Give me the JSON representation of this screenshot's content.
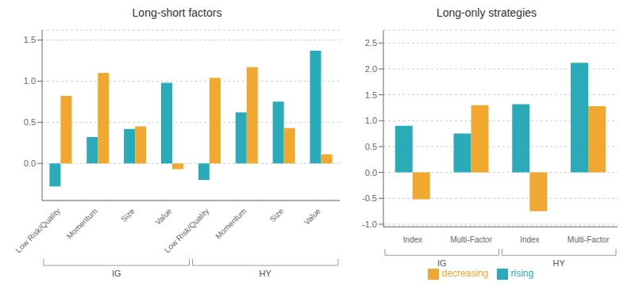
{
  "chart_data": [
    {
      "type": "bar",
      "title": "Long-short factors",
      "categories": [
        "Low Risk/Quality",
        "Momentum",
        "Size",
        "Value",
        "Low Risk/Quality",
        "Momentum",
        "Size",
        "Value"
      ],
      "series": [
        {
          "name": "rising",
          "color": "#2aabba",
          "values": [
            -0.28,
            0.32,
            0.42,
            0.98,
            -0.2,
            0.62,
            0.75,
            1.37
          ]
        },
        {
          "name": "decreasing",
          "color": "#f0a830",
          "values": [
            0.82,
            1.1,
            0.45,
            -0.07,
            1.04,
            1.17,
            0.43,
            0.11
          ]
        }
      ],
      "ylim": [
        -0.45,
        1.62
      ],
      "yticks": [
        {
          "value": 0,
          "label": "0.0"
        },
        0.5,
        {
          "value": 1,
          "label": "1.0"
        },
        1.5
      ],
      "grid": true,
      "annotations": [
        "IG",
        "HY"
      ]
    },
    {
      "type": "bar",
      "title": "Long-only strategies",
      "categories": [
        "Index",
        "Multi-Factor",
        "Index",
        "Multi-Factor"
      ],
      "series": [
        {
          "name": "rising",
          "color": "#2aabba",
          "values": [
            0.9,
            0.75,
            1.32,
            2.12
          ]
        },
        {
          "name": "decreasing",
          "color": "#f0a830",
          "values": [
            -0.52,
            1.3,
            -0.75,
            1.28
          ]
        }
      ],
      "ylim": [
        -1.05,
        2.75
      ],
      "yticks": [
        {
          "value": -1,
          "label": "-1.0"
        },
        -0.5,
        {
          "value": 0,
          "label": "0.0"
        },
        0.5,
        {
          "value": 1,
          "label": "1.0"
        },
        1.5,
        {
          "value": 2,
          "label": "2.0"
        },
        2.5
      ],
      "grid": true,
      "annotations": [
        "IG",
        "HY"
      ],
      "legend": "bottom"
    }
  ]
}
